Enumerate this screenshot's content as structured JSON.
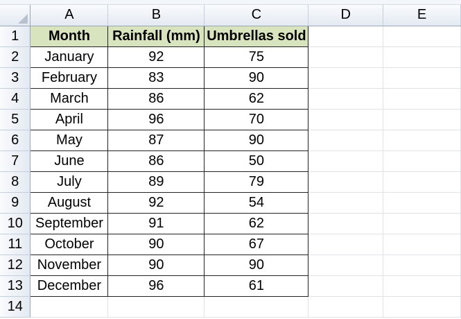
{
  "columns": [
    "A",
    "B",
    "C",
    "D",
    "E"
  ],
  "rows": [
    {
      "num": "1",
      "a": "Month",
      "b": "Rainfall (mm)",
      "c": "Umbrellas sold"
    },
    {
      "num": "2",
      "a": "January",
      "b": "92",
      "c": "75"
    },
    {
      "num": "3",
      "a": "February",
      "b": "83",
      "c": "90"
    },
    {
      "num": "4",
      "a": "March",
      "b": "86",
      "c": "62"
    },
    {
      "num": "5",
      "a": "April",
      "b": "96",
      "c": "70"
    },
    {
      "num": "6",
      "a": "May",
      "b": "87",
      "c": "90"
    },
    {
      "num": "7",
      "a": "June",
      "b": "86",
      "c": "50"
    },
    {
      "num": "8",
      "a": "July",
      "b": "89",
      "c": "79"
    },
    {
      "num": "9",
      "a": "August",
      "b": "92",
      "c": "54"
    },
    {
      "num": "10",
      "a": "September",
      "b": "91",
      "c": "62"
    },
    {
      "num": "11",
      "a": "October",
      "b": "90",
      "c": "67"
    },
    {
      "num": "12",
      "a": "November",
      "b": "90",
      "c": "90"
    },
    {
      "num": "13",
      "a": "December",
      "b": "96",
      "c": "61"
    },
    {
      "num": "14",
      "a": "",
      "b": "",
      "c": ""
    }
  ],
  "colors": {
    "header_fill": "#d7e4bd",
    "header_bar": "#e4eaf2",
    "gridline": "#dfe3e8"
  }
}
